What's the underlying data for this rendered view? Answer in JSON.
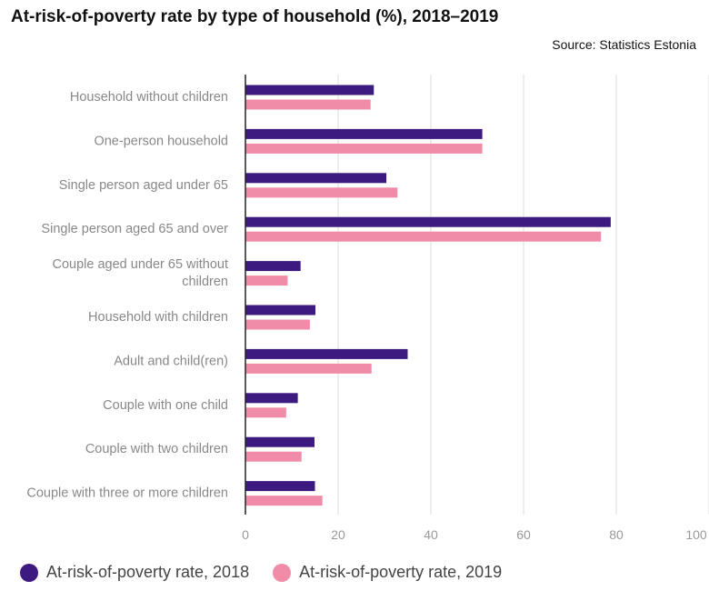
{
  "chart_data": {
    "type": "bar",
    "orientation": "horizontal",
    "title": "At-risk-of-poverty rate by type of household (%), 2018–2019",
    "source": "Source: Statistics Estonia",
    "categories": [
      "Household without children",
      "One-person household",
      "Single person aged under 65",
      "Single person aged 65 and over",
      "Couple aged under 65 without children",
      "Household with children",
      "Adult and child(ren)",
      "Couple with one child",
      "Couple with two children",
      "Couple with three or more children"
    ],
    "category_lines": [
      [
        "Household without children"
      ],
      [
        "One-person household"
      ],
      [
        "Single person aged under 65"
      ],
      [
        "Single person aged 65 and over"
      ],
      [
        "Couple aged under 65 without",
        "children"
      ],
      [
        "Household with children"
      ],
      [
        "Adult and child(ren)"
      ],
      [
        "Couple with one child"
      ],
      [
        "Couple with two children"
      ],
      [
        "Couple with three or more children"
      ]
    ],
    "series": [
      {
        "name": "At-risk-of-poverty rate, 2018",
        "color": "#3d1a80",
        "values": [
          27.7,
          51.1,
          30.4,
          78.8,
          11.9,
          15.1,
          35.0,
          11.3,
          14.9,
          15.0
        ]
      },
      {
        "name": "At-risk-of-poverty rate, 2019",
        "color": "#f08ca8",
        "values": [
          27.0,
          51.1,
          32.8,
          76.7,
          9.1,
          13.9,
          27.2,
          8.8,
          12.1,
          16.6
        ]
      }
    ],
    "x_ticks": [
      0,
      20,
      40,
      60,
      80,
      100
    ],
    "xlim": [
      0,
      100
    ],
    "grid": true,
    "legend_position": "bottom-left"
  }
}
